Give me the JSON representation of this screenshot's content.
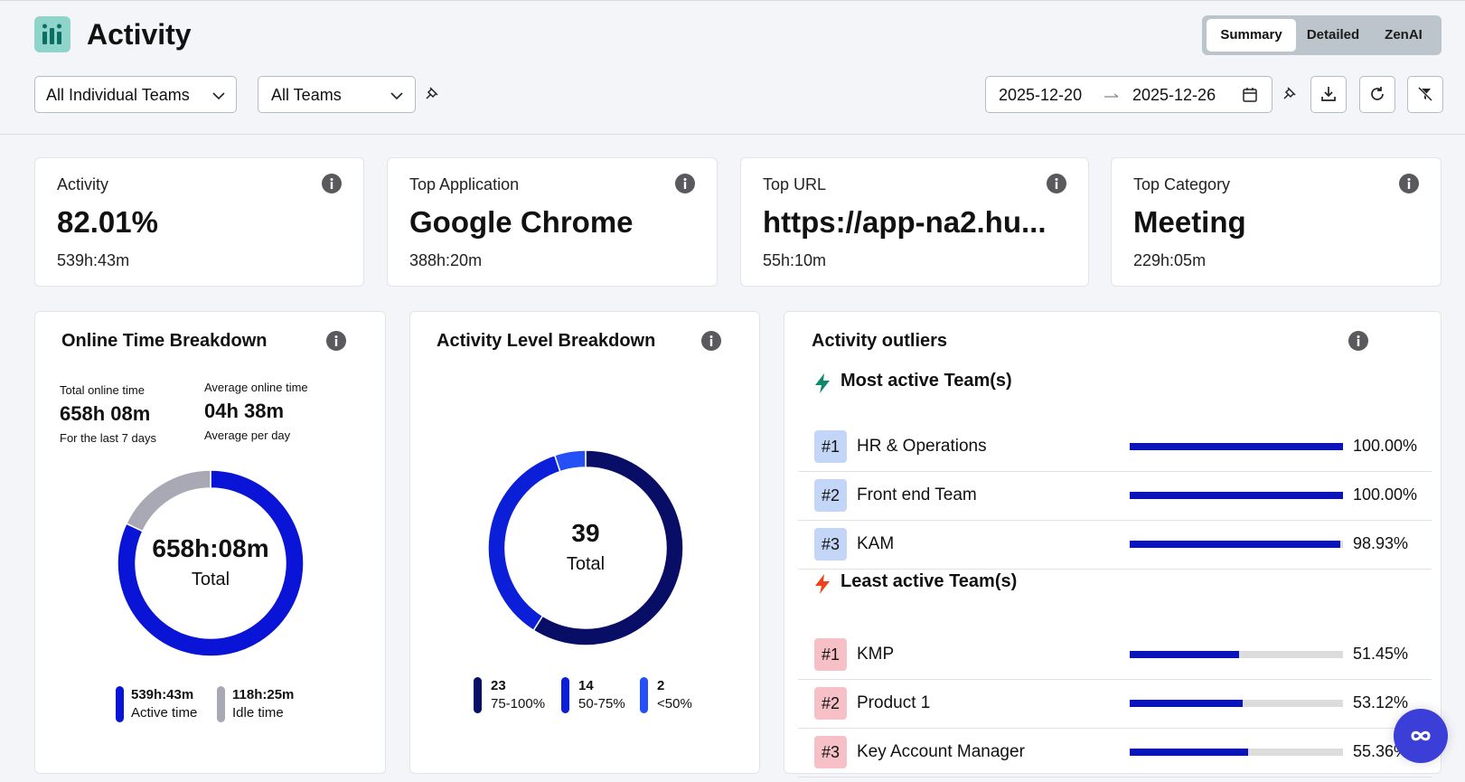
{
  "header": {
    "title": "Activity",
    "tabs": [
      "Summary",
      "Detailed",
      "ZenAI"
    ],
    "active_tab": 0
  },
  "filters": {
    "user_filter": "All Individual Teams",
    "team_filter": "All Teams",
    "date_start": "2025-12-20",
    "date_end": "2025-12-26"
  },
  "kpis": [
    {
      "label": "Activity",
      "value": "82.01%",
      "sub": "539h:43m"
    },
    {
      "label": "Top Application",
      "value": "Google Chrome",
      "sub": "388h:20m"
    },
    {
      "label": "Top URL",
      "value": "https://app-na2.hu...",
      "sub": "55h:10m"
    },
    {
      "label": "Top Category",
      "value": "Meeting",
      "sub": "229h:05m"
    }
  ],
  "online_time": {
    "title": "Online Time Breakdown",
    "total_label": "Total online time",
    "total": "658h 08m",
    "total_note": "For the last 7 days",
    "avg_label": "Average online time",
    "avg": "04h 38m",
    "avg_note": "Average per day",
    "center_value": "658h:08m",
    "center_label": "Total",
    "chart_data": {
      "type": "pie",
      "categories": [
        "Active time",
        "Idle time"
      ],
      "values": [
        539.72,
        118.42
      ],
      "value_labels": [
        "539h:43m",
        "118h:25m"
      ],
      "colors": [
        "#0a14d6",
        "#a9a9b5"
      ]
    }
  },
  "activity_level": {
    "title": "Activity Level Breakdown",
    "total": 39,
    "center_label": "Total",
    "chart_data": {
      "type": "pie",
      "categories": [
        "75-100%",
        "50-75%",
        "<50%"
      ],
      "values": [
        23,
        14,
        2
      ],
      "colors": [
        "#080d66",
        "#0c1fd8",
        "#2450f5"
      ]
    }
  },
  "outliers": {
    "title": "Activity outliers",
    "xlim": [
      0,
      100
    ],
    "bar_color": "#0a14b8",
    "groups": [
      {
        "title": "Most active Team(s)",
        "icon_color": "#0e8a6b",
        "badge_color": "#c4d6f7",
        "rows": [
          {
            "rank": "#1",
            "name": "HR & Operations",
            "value": 100,
            "value_label": "100.00%"
          },
          {
            "rank": "#2",
            "name": "Front end Team",
            "value": 100,
            "value_label": "100.00%"
          },
          {
            "rank": "#3",
            "name": "KAM",
            "value": 98.93,
            "value_label": "98.93%"
          }
        ]
      },
      {
        "title": "Least active Team(s)",
        "icon_color": "#f0421a",
        "badge_color": "#f7c0c6",
        "rows": [
          {
            "rank": "#1",
            "name": "KMP",
            "value": 51.45,
            "value_label": "51.45%"
          },
          {
            "rank": "#2",
            "name": "Product 1",
            "value": 53.12,
            "value_label": "53.12%"
          },
          {
            "rank": "#3",
            "name": "Key Account Manager",
            "value": 55.36,
            "value_label": "55.36%"
          }
        ]
      }
    ]
  }
}
